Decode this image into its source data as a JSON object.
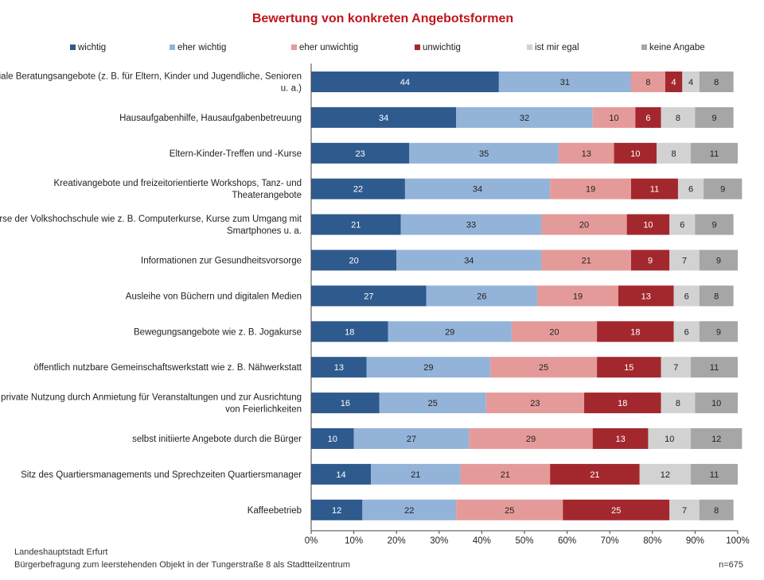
{
  "chart_data": {
    "type": "bar",
    "orientation": "horizontal",
    "stacked": "percent",
    "title": "Bewertung von konkreten Angebotsformen",
    "categories": [
      [
        "soziale Beratungsangebote (z. B. für Eltern, Kinder und Jugendliche, Senioren",
        "u. a.)"
      ],
      [
        "Hausaufgabenhilfe, Hausaufgabenbetreuung"
      ],
      [
        "Eltern-Kinder-Treffen und -Kurse"
      ],
      [
        "Kreativangebote und freizeitorientierte Workshops, Tanz- und",
        "Theaterangebote"
      ],
      [
        "Kurse der Volkshochschule wie z. B. Computerkurse, Kurse zum Umgang mit",
        "Smartphones u. a."
      ],
      [
        "Informationen zur Gesundheitsvorsorge"
      ],
      [
        "Ausleihe von Büchern und digitalen Medien"
      ],
      [
        "Bewegungsangebote wie z. B. Jogakurse"
      ],
      [
        "öffentlich nutzbare Gemeinschaftswerkstatt wie z. B. Nähwerkstatt"
      ],
      [
        "private Nutzung durch Anmietung für Veranstaltungen und zur Ausrichtung",
        "von Feierlichkeiten"
      ],
      [
        "selbst initiierte Angebote durch die Bürger"
      ],
      [
        "Sitz des Quartiersmanagements und Sprechzeiten Quartiersmanager"
      ],
      [
        "Kaffeebetrieb"
      ]
    ],
    "series": [
      {
        "name": "wichtig",
        "color": "#2e5a8e",
        "label_color": "#ffffff",
        "values": [
          44,
          34,
          23,
          22,
          21,
          20,
          27,
          18,
          13,
          16,
          10,
          14,
          12
        ]
      },
      {
        "name": "eher wichtig",
        "color": "#93b3d9",
        "label_color": "#222222",
        "values": [
          31,
          32,
          35,
          34,
          33,
          34,
          26,
          29,
          29,
          25,
          27,
          21,
          22
        ]
      },
      {
        "name": "eher unwichtig",
        "color": "#e59a9a",
        "label_color": "#222222",
        "values": [
          8,
          10,
          13,
          19,
          20,
          21,
          19,
          20,
          25,
          23,
          29,
          21,
          25
        ]
      },
      {
        "name": "unwichtig",
        "color": "#a3282d",
        "label_color": "#ffffff",
        "values": [
          4,
          6,
          10,
          11,
          10,
          9,
          13,
          18,
          15,
          18,
          13,
          21,
          25
        ]
      },
      {
        "name": "ist mir egal",
        "color": "#d2d2d2",
        "label_color": "#222222",
        "values": [
          4,
          8,
          8,
          6,
          6,
          7,
          6,
          6,
          7,
          8,
          10,
          12,
          7
        ]
      },
      {
        "name": "keine Angabe",
        "color": "#a6a6a6",
        "label_color": "#222222",
        "values": [
          8,
          9,
          11,
          9,
          9,
          9,
          8,
          9,
          11,
          10,
          12,
          11,
          8
        ]
      }
    ],
    "xticks": [
      "0%",
      "10%",
      "20%",
      "30%",
      "40%",
      "50%",
      "60%",
      "70%",
      "80%",
      "90%",
      "100%"
    ],
    "xlim": [
      0,
      100
    ],
    "legend_position": "top",
    "grid": false
  },
  "footer": {
    "source_line1": "Landeshauptstadt  Erfurt",
    "source_line2": "Bürgerbefragung  zum leerstehenden  Objekt in der Tungerstraße  8 als Stadtteilzentrum",
    "sample": "n=675"
  }
}
